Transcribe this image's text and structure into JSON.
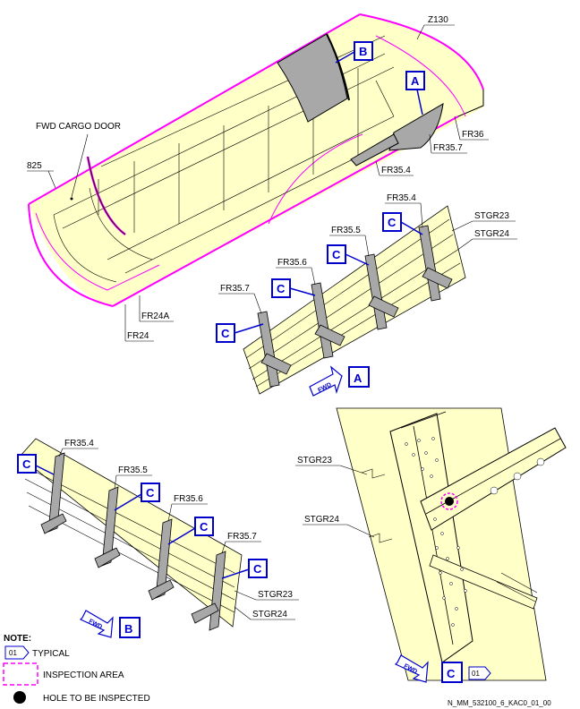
{
  "labels": {
    "z130": "Z130",
    "fwd_cargo_door": "FWD CARGO DOOR",
    "s825": "825",
    "fr36": "FR36",
    "fr35_7": "FR35.7",
    "fr35_6": "FR35.6",
    "fr35_5": "FR35.5",
    "fr35_4": "FR35.4",
    "fr24a": "FR24A",
    "fr24": "FR24",
    "stgr23": "STGR23",
    "stgr24": "STGR24"
  },
  "tags": {
    "a": "A",
    "b": "B",
    "c": "C"
  },
  "fwd": "FWD",
  "typical_code": "01",
  "note": {
    "title": "NOTE:",
    "typical": "TYPICAL",
    "inspection_area": "INSPECTION AREA",
    "hole": "HOLE TO BE INSPECTED"
  },
  "reference": "N_MM_532100_6_KAC0_01_00",
  "colors": {
    "structure": "#ffffc8",
    "inspection": "#ff00ff",
    "callout": "#0000cc",
    "frame": "#a8a8a8"
  }
}
